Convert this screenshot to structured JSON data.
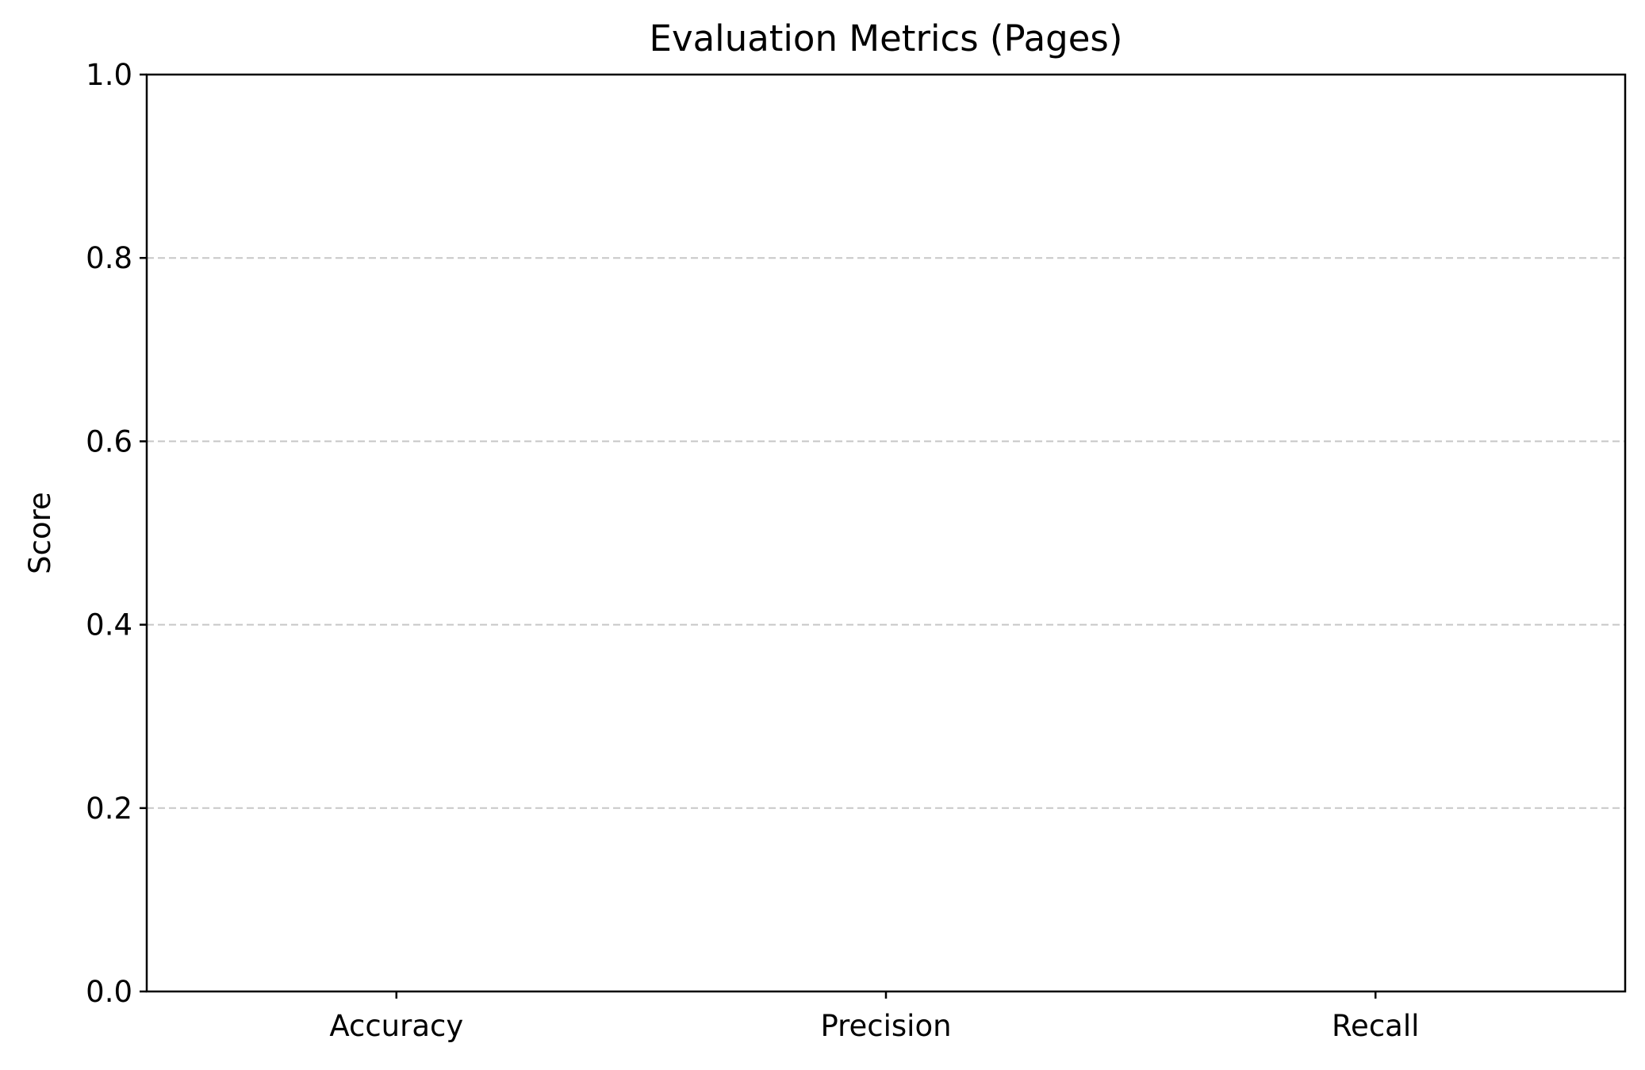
{
  "chart_data": {
    "type": "bar",
    "title": "Evaluation Metrics  (Pages)",
    "xlabel": "",
    "ylabel": "Score",
    "categories": [
      "Accuracy",
      "Precision",
      "Recall"
    ],
    "values": [
      null,
      null,
      null
    ],
    "ylim": [
      0,
      1.0
    ],
    "yticks": [
      "0.0",
      "0.2",
      "0.4",
      "0.6",
      "0.8",
      "1.0"
    ],
    "grid": "y-dashed",
    "legend": "none"
  }
}
